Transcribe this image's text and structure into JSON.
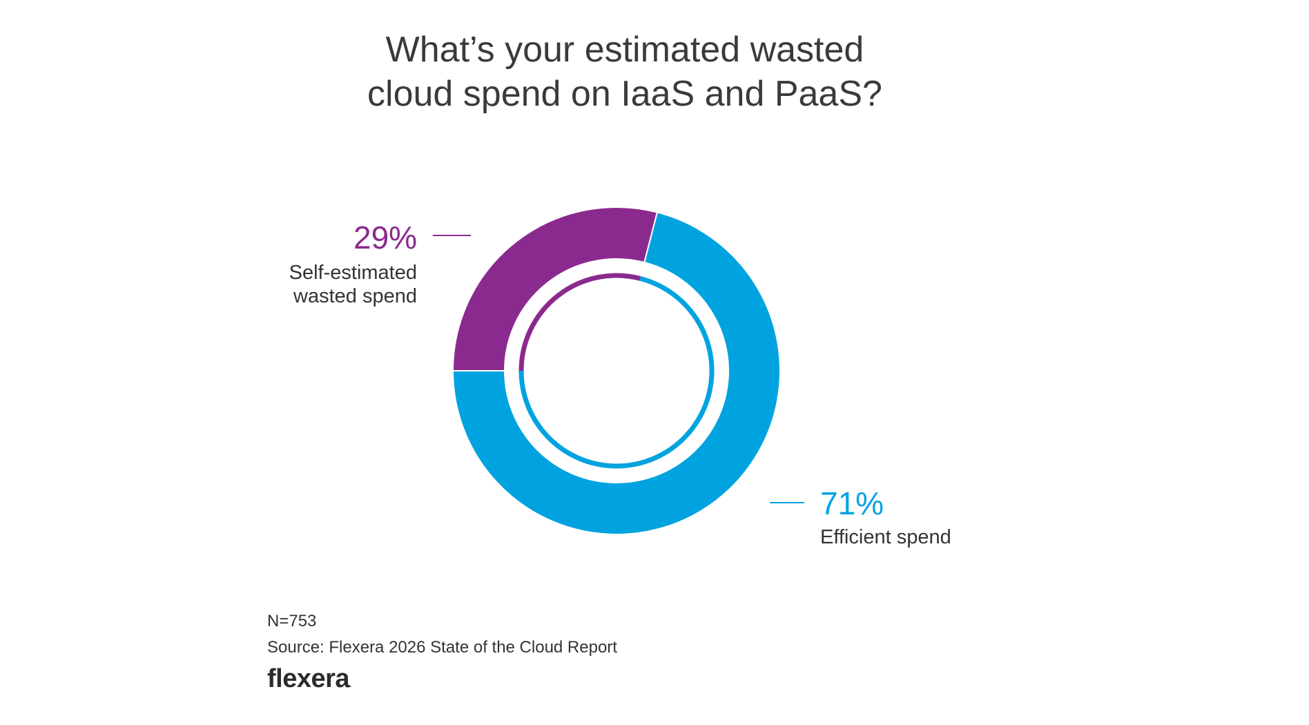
{
  "chart_data": {
    "type": "pie",
    "title_lines": [
      "What’s your estimated wasted",
      "cloud spend on IaaS and PaaS?"
    ],
    "slices": [
      {
        "name_lines": [
          "Self-estimated",
          "wasted spend"
        ],
        "value": 29,
        "label": "29%",
        "color": "#8B2A8E"
      },
      {
        "name_lines": [
          "Efficient spend"
        ],
        "value": 71,
        "label": "71%",
        "color": "#00A3E0"
      }
    ],
    "unit": "%"
  },
  "footer": {
    "sample": "N=753",
    "source": "Source: Flexera 2026 State of the Cloud Report"
  },
  "logo": {
    "text": "flexera",
    "suffix": "."
  }
}
